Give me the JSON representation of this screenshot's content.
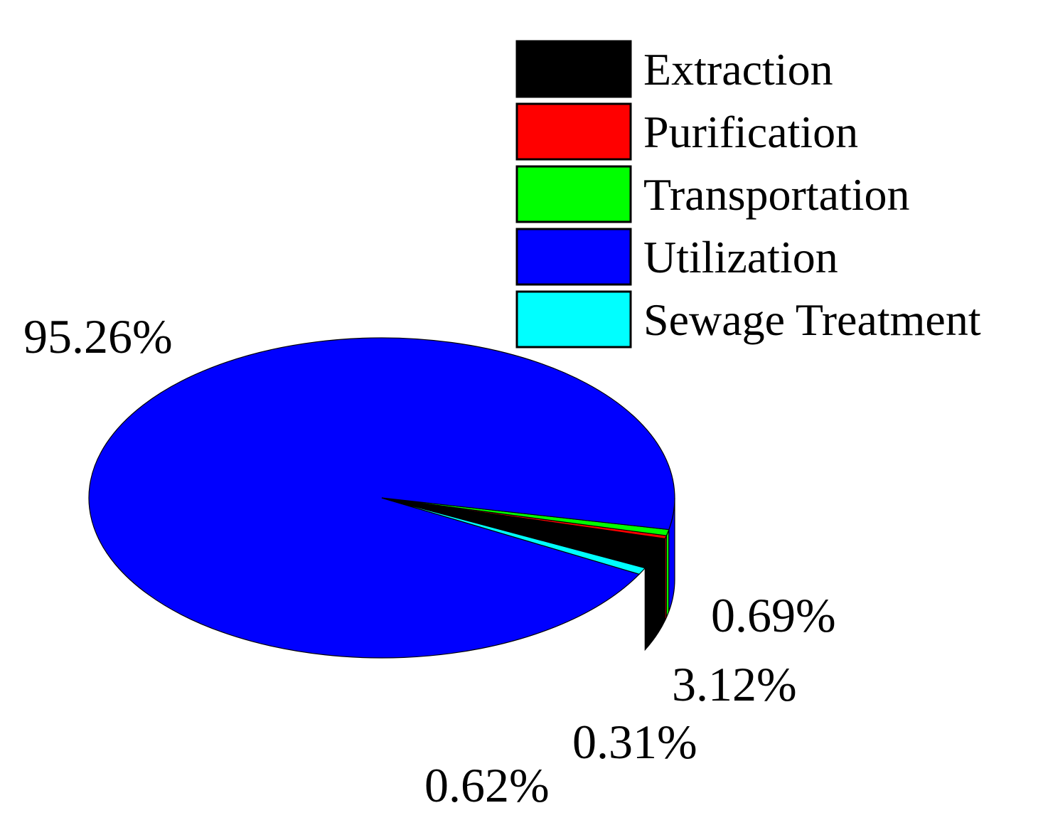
{
  "chart_data": {
    "type": "pie",
    "style": "3d",
    "categories": [
      "Extraction",
      "Purification",
      "Transportation",
      "Utilization",
      "Sewage Treatment"
    ],
    "values": [
      3.12,
      0.31,
      0.62,
      95.26,
      0.69
    ],
    "value_labels": [
      "3.12%",
      "0.31%",
      "0.62%",
      "95.26%",
      "0.69%"
    ],
    "colors": [
      "#000000",
      "#ff0000",
      "#00ff00",
      "#0000ff",
      "#00ffff"
    ],
    "legend_position": "top-right",
    "title": ""
  }
}
